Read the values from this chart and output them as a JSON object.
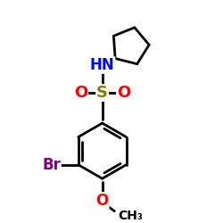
{
  "background_color": "#ffffff",
  "atom_colors": {
    "N": "#0000ff",
    "O": "#ff0000",
    "S": "#808000",
    "Br": "#800080",
    "C": "#000000"
  },
  "bond_color": "#000000",
  "bond_width": 2.0,
  "figsize": [
    2.5,
    2.5
  ],
  "dpi": 100,
  "xlim": [
    -1.5,
    3.0
  ],
  "ylim": [
    -2.6,
    3.2
  ]
}
